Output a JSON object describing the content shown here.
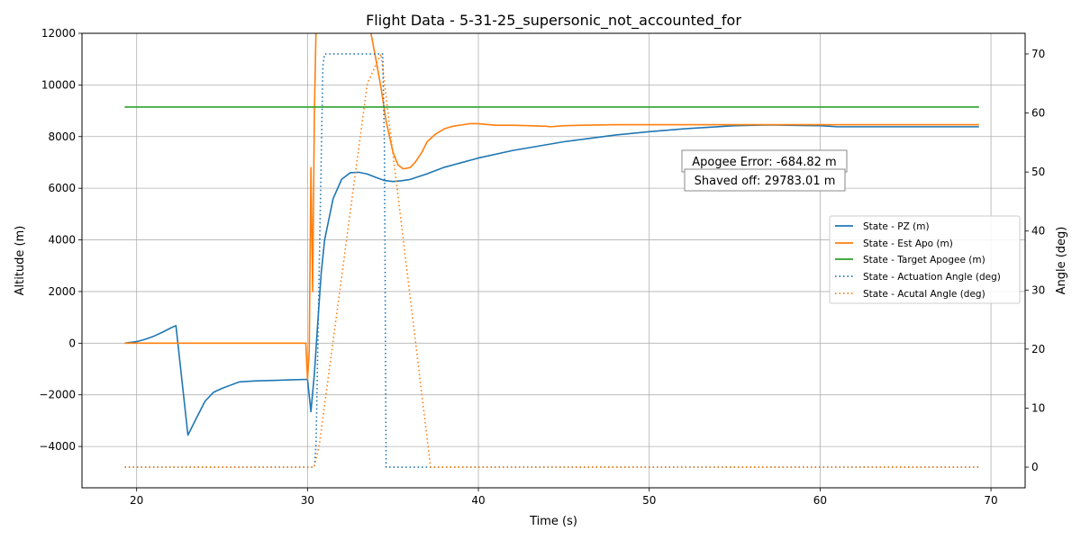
{
  "chart_data": {
    "type": "line",
    "title": "Flight Data - 5-31-25_supersonic_not_accounted_for",
    "xlabel": "Time (s)",
    "ylabel": "Altitude (m)",
    "y2label": "Angle (deg)",
    "xlim": [
      16.8,
      72.0
    ],
    "ylim": [
      -5600,
      12000
    ],
    "y2lim": [
      -3.5,
      73.5
    ],
    "xticks": [
      20,
      30,
      40,
      50,
      60,
      70
    ],
    "yticks": [
      -4000,
      -2000,
      0,
      2000,
      4000,
      6000,
      8000,
      10000,
      12000
    ],
    "y2ticks": [
      0,
      10,
      20,
      30,
      40,
      50,
      60,
      70
    ],
    "grid": true,
    "legend_position": "center-right",
    "annotations": [
      "Apogee Error: -684.82 m",
      "Shaved off: 29783.01 m"
    ],
    "series": [
      {
        "name": "State - PZ (m)",
        "axis": "left",
        "color": "#1f77b4",
        "style": "solid",
        "x": [
          19.3,
          20.0,
          20.5,
          21.0,
          21.5,
          22.0,
          22.3,
          23.0,
          23.5,
          24.0,
          24.5,
          25.0,
          26.0,
          27.0,
          28.0,
          29.0,
          30.0,
          30.2,
          30.4,
          30.6,
          30.8,
          31.0,
          31.5,
          32.0,
          32.5,
          33.0,
          33.5,
          34.0,
          34.5,
          35.0,
          35.5,
          36.0,
          37.0,
          38.0,
          40.0,
          42.0,
          45.0,
          48.0,
          50.0,
          52.0,
          55.0,
          57.0,
          60.0,
          61.0,
          65.0,
          69.3
        ],
        "y": [
          0,
          60,
          150,
          270,
          420,
          590,
          680,
          -3560,
          -2900,
          -2250,
          -1900,
          -1750,
          -1500,
          -1460,
          -1440,
          -1420,
          -1400,
          -2650,
          -1200,
          800,
          2700,
          4000,
          5600,
          6350,
          6600,
          6620,
          6550,
          6420,
          6300,
          6260,
          6290,
          6340,
          6560,
          6810,
          7170,
          7460,
          7800,
          8060,
          8190,
          8300,
          8420,
          8450,
          8420,
          8380,
          8380,
          8380
        ]
      },
      {
        "name": "State - Est Apo (m)",
        "axis": "left",
        "color": "#ff7f0e",
        "style": "solid",
        "x": [
          19.3,
          25.0,
          29.9,
          30.0,
          30.1,
          30.2,
          30.3,
          30.4,
          30.5,
          30.6,
          31.0,
          31.5,
          32.0,
          32.5,
          33.0,
          33.6,
          34.0,
          34.3,
          34.6,
          35.0,
          35.3,
          35.6,
          36.0,
          36.3,
          36.7,
          37.0,
          37.5,
          38.0,
          38.5,
          39.0,
          39.5,
          40.0,
          40.5,
          41.0,
          42.0,
          43.0,
          44.0,
          44.2,
          45.0,
          46.0,
          48.0,
          50.0,
          55.0,
          60.0,
          65.0,
          69.3
        ],
        "y": [
          0,
          0,
          0,
          -1400,
          -300,
          6800,
          2000,
          8800,
          12200,
          12400,
          12400,
          12400,
          12400,
          12400,
          12400,
          12400,
          11000,
          9900,
          8600,
          7400,
          6900,
          6750,
          6800,
          7000,
          7400,
          7800,
          8100,
          8300,
          8400,
          8450,
          8500,
          8500,
          8470,
          8440,
          8440,
          8420,
          8400,
          8380,
          8420,
          8440,
          8460,
          8460,
          8460,
          8460,
          8460,
          8460
        ]
      },
      {
        "name": "State - Target Apogee (m)",
        "axis": "left",
        "color": "#2ca02c",
        "style": "solid",
        "x": [
          19.3,
          69.3
        ],
        "y": [
          9144,
          9144
        ]
      },
      {
        "name": "State - Actuation Angle (deg)",
        "axis": "right",
        "color": "#1f77b4",
        "style": "dotted",
        "x": [
          19.3,
          30.4,
          30.5,
          30.9,
          31.0,
          34.4,
          34.5,
          34.6,
          69.3
        ],
        "y": [
          0,
          0,
          4,
          68,
          70,
          70,
          55,
          0,
          0
        ]
      },
      {
        "name": "State - Acutal Angle (deg)",
        "axis": "right",
        "color": "#ff7f0e",
        "style": "dotted",
        "x": [
          19.3,
          30.4,
          30.7,
          33.5,
          34.3,
          37.2,
          69.3
        ],
        "y": [
          0,
          0,
          4,
          65,
          70,
          0,
          0
        ]
      }
    ]
  }
}
